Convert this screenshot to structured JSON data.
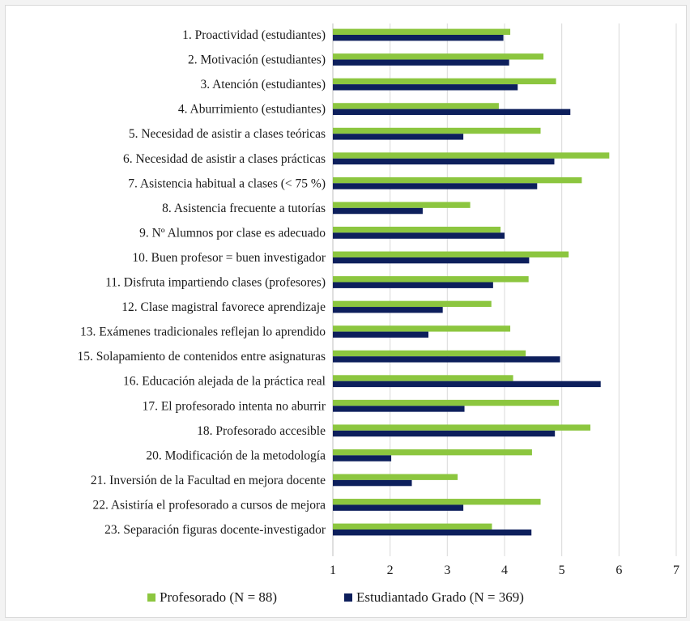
{
  "chart_data": {
    "type": "bar",
    "orientation": "horizontal",
    "title": "",
    "xlabel": "",
    "ylabel": "",
    "xlim": [
      1,
      7
    ],
    "xticks": [
      1,
      2,
      3,
      4,
      5,
      6,
      7
    ],
    "grid": "vertical",
    "legend": "bottom",
    "categories": [
      "1. Proactividad (estudiantes)",
      "2. Motivación (estudiantes)",
      "3. Atención (estudiantes)",
      "4. Aburrimiento (estudiantes)",
      "5. Necesidad de asistir a clases teóricas",
      "6. Necesidad de asistir a clases prácticas",
      "7. Asistencia habitual a clases (< 75 %)",
      "8. Asistencia frecuente a tutorías",
      "9. Nº Alumnos por clase es adecuado",
      "10. Buen profesor = buen investigador",
      "11. Disfruta impartiendo clases (profesores)",
      "12. Clase magistral favorece aprendizaje",
      "13. Exámenes tradicionales reflejan lo aprendido",
      "15. Solapamiento de contenidos entre asignaturas",
      "16. Educación alejada de la práctica real",
      "17. El profesorado intenta no aburrir",
      "18. Profesorado accesible",
      "20. Modificación de la metodología",
      "21. Inversión de la Facultad en mejora docente",
      "22. Asistiría el profesorado a cursos de mejora",
      "23. Separación figuras docente-investigador"
    ],
    "series": [
      {
        "name": "Profesorado (N = 88)",
        "color": "#8cc63f",
        "values": [
          4.1,
          4.68,
          4.9,
          3.9,
          4.63,
          5.83,
          5.35,
          3.4,
          3.93,
          5.12,
          4.42,
          3.77,
          4.1,
          4.37,
          4.15,
          4.95,
          5.5,
          4.48,
          3.18,
          4.63,
          3.78
        ]
      },
      {
        "name": "Estudiantado Grado (N = 369)",
        "color": "#0d1f5c",
        "values": [
          3.98,
          4.08,
          4.23,
          5.15,
          3.28,
          4.87,
          4.57,
          2.57,
          4.0,
          4.43,
          3.8,
          2.92,
          2.67,
          4.97,
          5.68,
          3.3,
          4.88,
          2.02,
          2.38,
          3.28,
          4.47
        ]
      }
    ]
  }
}
